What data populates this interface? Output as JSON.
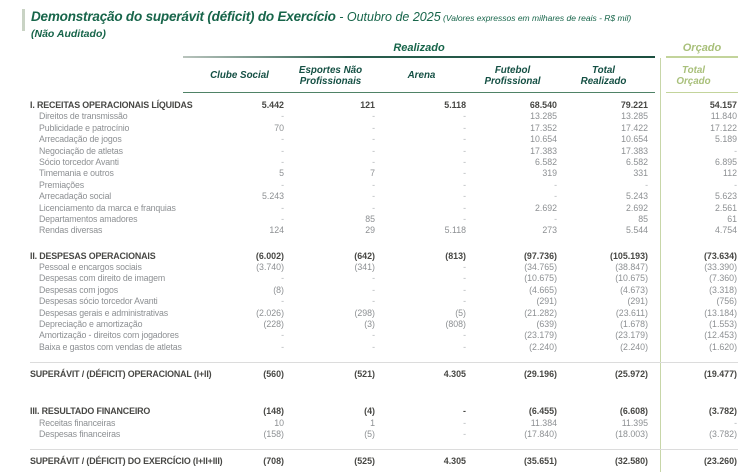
{
  "header": {
    "title": "Demonstração do superávit (déficit) do Exercício",
    "period": " - Outubro de 2025",
    "note": " (Valores expressos em milhares de reais - R$ mil)",
    "unaudited": "(Não Auditado)",
    "realizado": "Realizado",
    "orcado": "Orçado"
  },
  "colors": {
    "dark_green": "#17654a",
    "light_green": "#a9c07b",
    "header_teal": "#155044",
    "text_dark": "#474744",
    "text_gray": "#8d9093",
    "dash_gray": "#b3b6b9",
    "rule_light": "#c3d49b",
    "hairline": "#dcdcdc",
    "accent_bar": "#c9d3c4",
    "vline": "#c7d6a8"
  },
  "table": {
    "column_headers": [
      {
        "lines": [
          "Clube Social"
        ]
      },
      {
        "lines": [
          "Esportes Não",
          "Profissionais"
        ]
      },
      {
        "lines": [
          "Arena"
        ]
      },
      {
        "lines": [
          "Futebol",
          "Profissional"
        ]
      },
      {
        "lines": [
          "Total",
          "Realizado"
        ]
      },
      {
        "lines": [
          "Total",
          "Orçado"
        ],
        "orcado": true
      }
    ],
    "rows": [
      {
        "type": "section",
        "label": "I. RECEITAS OPERACIONAIS LÍQUIDAS",
        "values": [
          "5.442",
          "121",
          "5.118",
          "68.540",
          "79.221",
          "54.157"
        ]
      },
      {
        "type": "detail",
        "label": "Direitos de transmissão",
        "values": [
          "-",
          "-",
          "-",
          "13.285",
          "13.285",
          "11.840"
        ]
      },
      {
        "type": "detail",
        "label": "Publicidade e patrocínio",
        "values": [
          "70",
          "-",
          "-",
          "17.352",
          "17.422",
          "17.122"
        ]
      },
      {
        "type": "detail",
        "label": "Arrecadação de jogos",
        "values": [
          "-",
          "-",
          "-",
          "10.654",
          "10.654",
          "5.189"
        ]
      },
      {
        "type": "detail",
        "label": "Negociação de atletas",
        "values": [
          "-",
          "-",
          "-",
          "17.383",
          "17.383",
          "-"
        ]
      },
      {
        "type": "detail",
        "label": "Sócio torcedor Avanti",
        "values": [
          "-",
          "-",
          "-",
          "6.582",
          "6.582",
          "6.895"
        ]
      },
      {
        "type": "detail",
        "label": "Timemania e outros",
        "values": [
          "5",
          "7",
          "-",
          "319",
          "331",
          "112"
        ]
      },
      {
        "type": "detail",
        "label": "Premiações",
        "values": [
          "-",
          "-",
          "-",
          "-",
          "-",
          "-"
        ]
      },
      {
        "type": "detail",
        "label": "Arrecadação social",
        "values": [
          "5.243",
          "-",
          "-",
          "-",
          "5.243",
          "5.623"
        ]
      },
      {
        "type": "detail",
        "label": "Licenciamento da marca e franquias",
        "values": [
          "-",
          "-",
          "-",
          "2.692",
          "2.692",
          "2.561"
        ]
      },
      {
        "type": "detail",
        "label": "Departamentos amadores",
        "values": [
          "-",
          "85",
          "-",
          "-",
          "85",
          "61"
        ]
      },
      {
        "type": "detail",
        "label": "Rendas diversas",
        "values": [
          "124",
          "29",
          "5.118",
          "273",
          "5.544",
          "4.754"
        ]
      },
      {
        "type": "section",
        "label": "II. DESPESAS OPERACIONAIS",
        "values": [
          "(6.002)",
          "(642)",
          "(813)",
          "(97.736)",
          "(105.193)",
          "(73.634)"
        ]
      },
      {
        "type": "detail",
        "label": "Pessoal e encargos sociais",
        "values": [
          "(3.740)",
          "(341)",
          "-",
          "(34.765)",
          "(38.847)",
          "(33.390)"
        ]
      },
      {
        "type": "detail",
        "label": "Despesas com direito de imagem",
        "values": [
          "-",
          "-",
          "-",
          "(10.675)",
          "(10.675)",
          "(7.360)"
        ]
      },
      {
        "type": "detail",
        "label": "Despesas com jogos",
        "values": [
          "(8)",
          "-",
          "-",
          "(4.665)",
          "(4.673)",
          "(3.318)"
        ]
      },
      {
        "type": "detail",
        "label": "Despesas sócio torcedor Avanti",
        "values": [
          "-",
          "-",
          "-",
          "(291)",
          "(291)",
          "(756)"
        ]
      },
      {
        "type": "detail",
        "label": "Despesas gerais e administrativas",
        "values": [
          "(2.026)",
          "(298)",
          "(5)",
          "(21.282)",
          "(23.611)",
          "(13.184)"
        ]
      },
      {
        "type": "detail",
        "label": "Depreciação e amortização",
        "values": [
          "(228)",
          "(3)",
          "(808)",
          "(639)",
          "(1.678)",
          "(1.553)"
        ]
      },
      {
        "type": "detail",
        "label": "Amortização - direitos com jogadores",
        "values": [
          "-",
          "-",
          "-",
          "(23.179)",
          "(23.179)",
          "(12.453)"
        ]
      },
      {
        "type": "detail",
        "label": "Baixa e gastos com vendas de atletas",
        "values": [
          "-",
          "-",
          "-",
          "(2.240)",
          "(2.240)",
          "(1.620)"
        ]
      },
      {
        "type": "total",
        "label": "SUPERÁVIT / (DÉFICIT) OPERACIONAL (I+II)",
        "values": [
          "(560)",
          "(521)",
          "4.305",
          "(29.196)",
          "(25.972)",
          "(19.477)"
        ]
      },
      {
        "type": "section",
        "label": "III. RESULTADO FINANCEIRO",
        "values": [
          "(148)",
          "(4)",
          "-",
          "(6.455)",
          "(6.608)",
          "(3.782)"
        ]
      },
      {
        "type": "detail",
        "label": "Receitas financeiras",
        "values": [
          "10",
          "1",
          "-",
          "11.384",
          "11.395",
          "-"
        ]
      },
      {
        "type": "detail",
        "label": "Despesas financeiras",
        "values": [
          "(158)",
          "(5)",
          "-",
          "(17.840)",
          "(18.003)",
          "(3.782)"
        ]
      },
      {
        "type": "total",
        "label": "SUPERÁVIT / (DÉFICIT) DO EXERCÍCIO  (I+II+III)",
        "values": [
          "(708)",
          "(525)",
          "4.305",
          "(35.651)",
          "(32.580)",
          "(23.260)"
        ]
      }
    ]
  }
}
